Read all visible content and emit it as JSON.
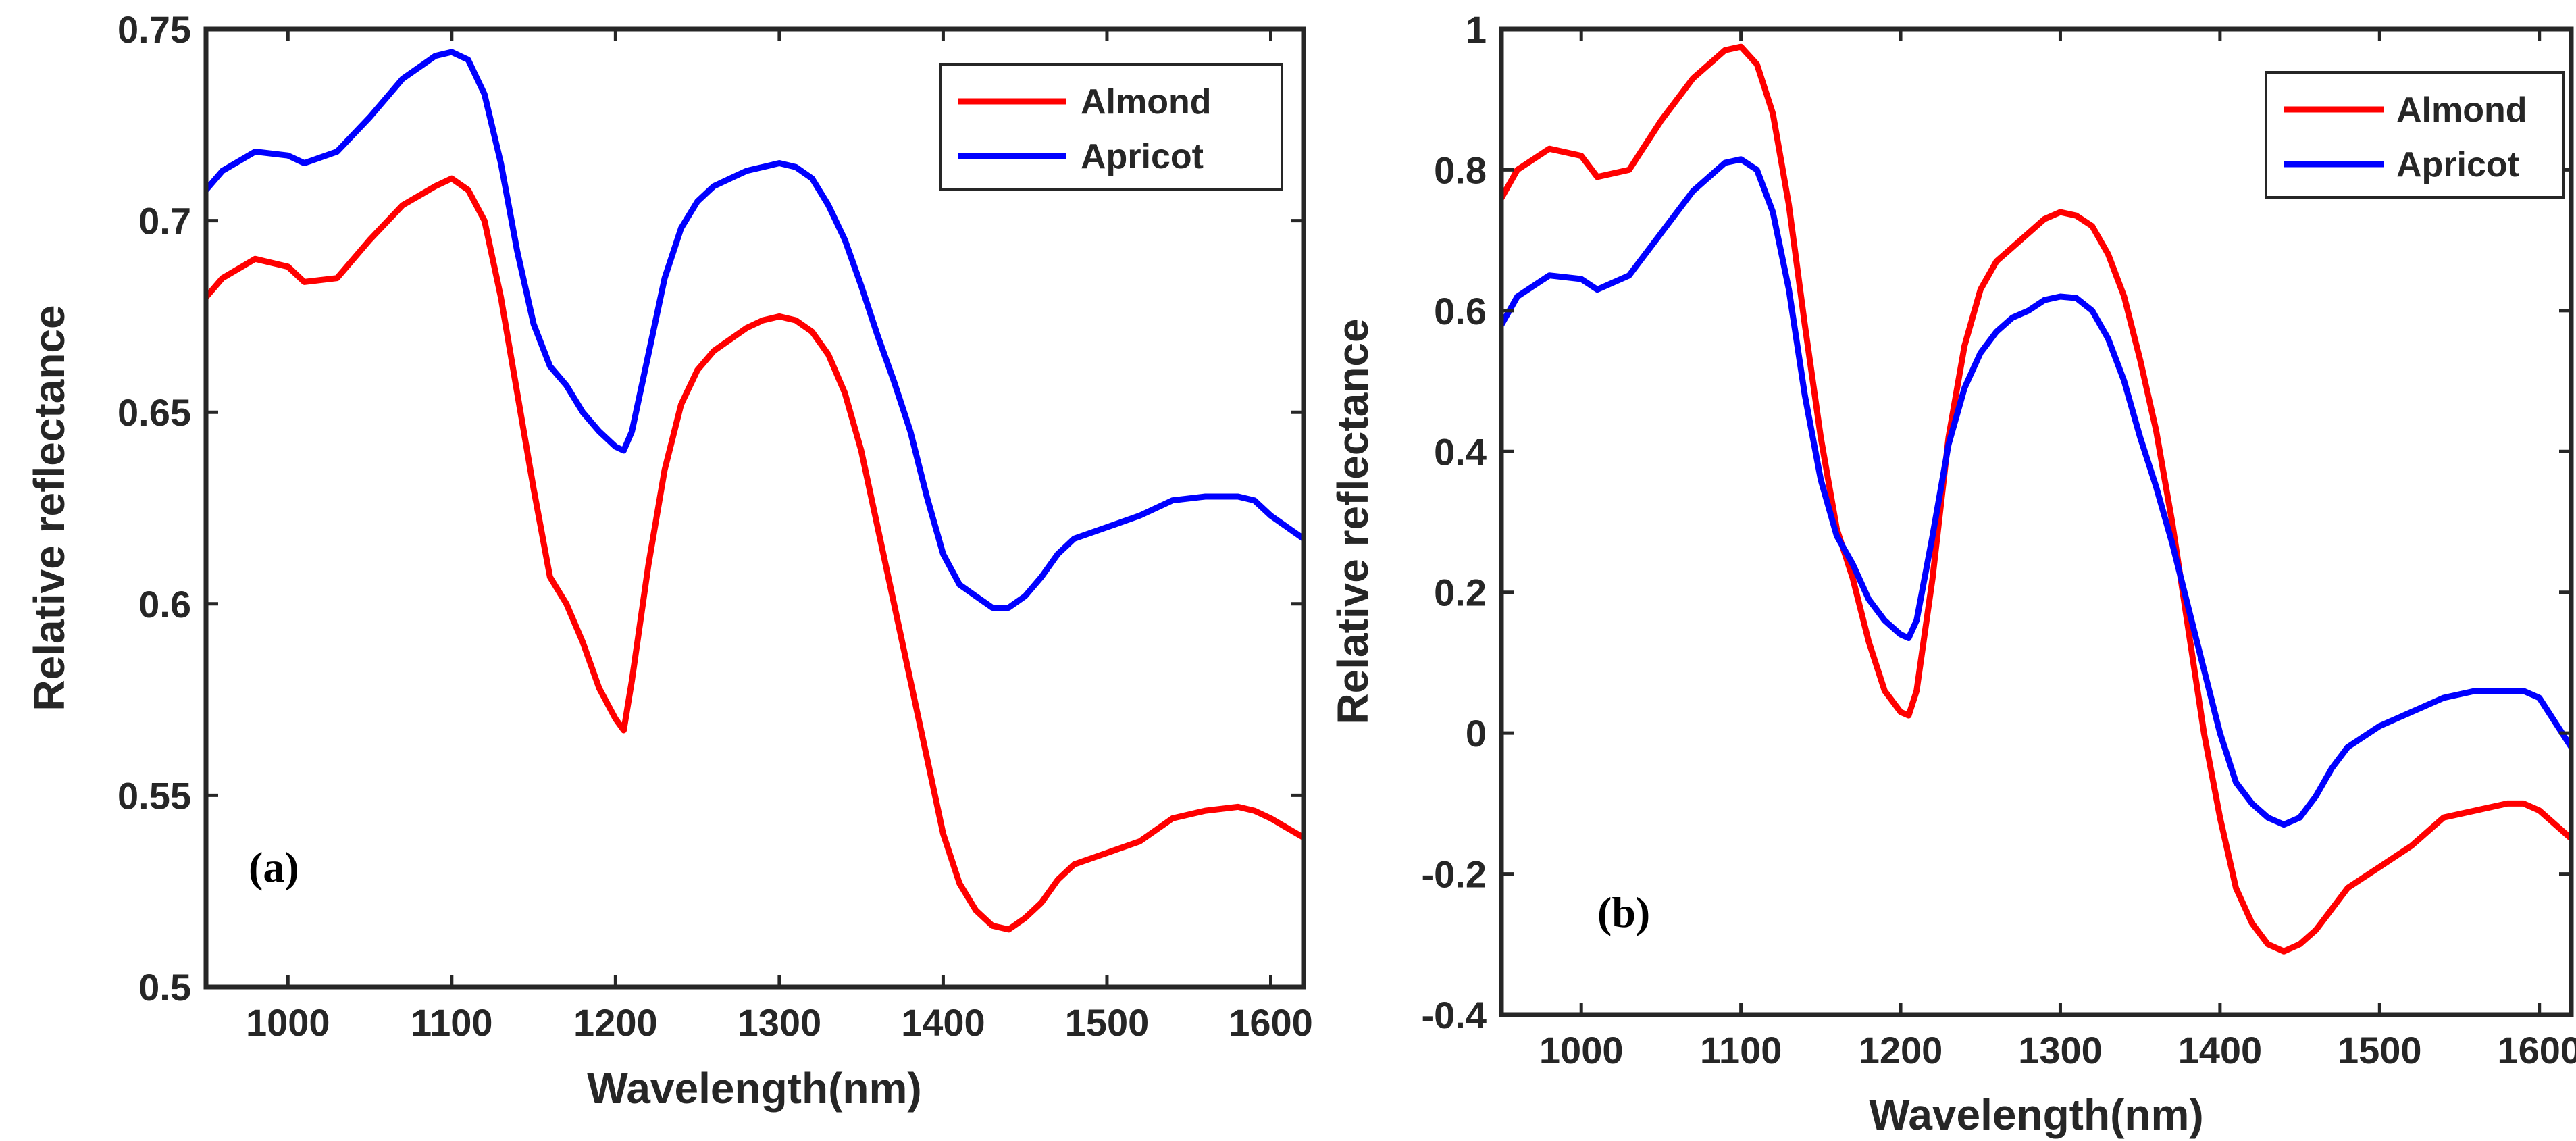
{
  "chart_data": [
    {
      "type": "line",
      "panel_label": "(a)",
      "xlabel": "Wavelength(nm)",
      "ylabel": "Relative reflectance",
      "xlim": [
        950,
        1620
      ],
      "ylim": [
        0.5,
        0.75
      ],
      "xticks": [
        1000,
        1100,
        1200,
        1300,
        1400,
        1500,
        1600
      ],
      "xtick_labels": [
        "1000",
        "1100",
        "1200",
        "1300",
        "1400",
        "1500",
        "1600"
      ],
      "yticks": [
        0.5,
        0.55,
        0.6,
        0.65,
        0.7,
        0.75
      ],
      "ytick_labels": [
        "0.5",
        "0.55",
        "0.6",
        "0.65",
        "0.7",
        "0.75"
      ],
      "legend_position": "top-right",
      "series": [
        {
          "name": "Almond",
          "color": "#ff0000",
          "x": [
            950,
            960,
            980,
            1000,
            1010,
            1030,
            1050,
            1070,
            1090,
            1100,
            1110,
            1120,
            1130,
            1140,
            1150,
            1160,
            1170,
            1180,
            1190,
            1200,
            1205,
            1210,
            1220,
            1230,
            1240,
            1250,
            1260,
            1270,
            1280,
            1290,
            1300,
            1310,
            1320,
            1330,
            1340,
            1350,
            1360,
            1370,
            1380,
            1390,
            1400,
            1410,
            1420,
            1430,
            1440,
            1450,
            1460,
            1470,
            1480,
            1500,
            1520,
            1540,
            1560,
            1580,
            1590,
            1600,
            1620
          ],
          "values": [
            0.68,
            0.685,
            0.69,
            0.688,
            0.684,
            0.685,
            0.695,
            0.704,
            0.709,
            0.711,
            0.708,
            0.7,
            0.68,
            0.655,
            0.63,
            0.607,
            0.6,
            0.59,
            0.578,
            0.57,
            0.567,
            0.58,
            0.61,
            0.635,
            0.652,
            0.661,
            0.666,
            0.669,
            0.672,
            0.674,
            0.675,
            0.674,
            0.671,
            0.665,
            0.655,
            0.64,
            0.62,
            0.6,
            0.58,
            0.56,
            0.54,
            0.527,
            0.52,
            0.516,
            0.515,
            0.518,
            0.522,
            0.528,
            0.532,
            0.535,
            0.538,
            0.544,
            0.546,
            0.547,
            0.546,
            0.544,
            0.539
          ]
        },
        {
          "name": "Apricot",
          "color": "#0000ff",
          "x": [
            950,
            960,
            980,
            1000,
            1010,
            1030,
            1050,
            1070,
            1090,
            1100,
            1110,
            1120,
            1130,
            1140,
            1150,
            1160,
            1170,
            1180,
            1190,
            1200,
            1205,
            1210,
            1220,
            1230,
            1240,
            1250,
            1260,
            1270,
            1280,
            1290,
            1300,
            1310,
            1320,
            1330,
            1340,
            1350,
            1360,
            1370,
            1380,
            1390,
            1400,
            1410,
            1420,
            1430,
            1440,
            1450,
            1460,
            1470,
            1480,
            1500,
            1520,
            1540,
            1560,
            1580,
            1590,
            1600,
            1620
          ],
          "values": [
            0.708,
            0.713,
            0.718,
            0.717,
            0.715,
            0.718,
            0.727,
            0.737,
            0.743,
            0.744,
            0.742,
            0.733,
            0.715,
            0.692,
            0.673,
            0.662,
            0.657,
            0.65,
            0.645,
            0.641,
            0.64,
            0.645,
            0.665,
            0.685,
            0.698,
            0.705,
            0.709,
            0.711,
            0.713,
            0.714,
            0.715,
            0.714,
            0.711,
            0.704,
            0.695,
            0.683,
            0.67,
            0.658,
            0.645,
            0.628,
            0.613,
            0.605,
            0.602,
            0.599,
            0.599,
            0.602,
            0.607,
            0.613,
            0.617,
            0.62,
            0.623,
            0.627,
            0.628,
            0.628,
            0.627,
            0.623,
            0.617
          ]
        }
      ]
    },
    {
      "type": "line",
      "panel_label": "(b)",
      "xlabel": "Wavelength(nm)",
      "ylabel": "Relative reflectance",
      "xlim": [
        950,
        1620
      ],
      "ylim": [
        -0.4,
        1.0
      ],
      "xticks": [
        1000,
        1100,
        1200,
        1300,
        1400,
        1500,
        1600
      ],
      "xtick_labels": [
        "1000",
        "1100",
        "1200",
        "1300",
        "1400",
        "1500",
        "1600"
      ],
      "yticks": [
        -0.4,
        -0.2,
        0,
        0.2,
        0.4,
        0.6,
        0.8,
        1
      ],
      "ytick_labels": [
        "-0.4",
        "-0.2",
        "0",
        "0.2",
        "0.4",
        "0.6",
        "0.8",
        "1"
      ],
      "legend_position": "top-right",
      "series": [
        {
          "name": "Almond",
          "color": "#ff0000",
          "x": [
            950,
            960,
            980,
            1000,
            1010,
            1030,
            1050,
            1070,
            1090,
            1100,
            1110,
            1120,
            1130,
            1140,
            1150,
            1160,
            1170,
            1180,
            1190,
            1200,
            1205,
            1210,
            1220,
            1230,
            1240,
            1250,
            1260,
            1270,
            1280,
            1290,
            1300,
            1310,
            1320,
            1330,
            1340,
            1350,
            1360,
            1370,
            1380,
            1390,
            1400,
            1410,
            1420,
            1430,
            1440,
            1450,
            1460,
            1470,
            1480,
            1500,
            1520,
            1540,
            1560,
            1580,
            1590,
            1600,
            1620
          ],
          "values": [
            0.76,
            0.8,
            0.83,
            0.82,
            0.79,
            0.8,
            0.87,
            0.93,
            0.97,
            0.975,
            0.95,
            0.88,
            0.75,
            0.58,
            0.42,
            0.29,
            0.22,
            0.13,
            0.06,
            0.03,
            0.025,
            0.06,
            0.22,
            0.42,
            0.55,
            0.63,
            0.67,
            0.69,
            0.71,
            0.73,
            0.74,
            0.735,
            0.72,
            0.68,
            0.62,
            0.53,
            0.43,
            0.3,
            0.15,
            0.0,
            -0.12,
            -0.22,
            -0.27,
            -0.3,
            -0.31,
            -0.3,
            -0.28,
            -0.25,
            -0.22,
            -0.19,
            -0.16,
            -0.12,
            -0.11,
            -0.1,
            -0.1,
            -0.11,
            -0.15
          ]
        },
        {
          "name": "Apricot",
          "color": "#0000ff",
          "x": [
            950,
            960,
            980,
            1000,
            1010,
            1030,
            1050,
            1070,
            1090,
            1100,
            1110,
            1120,
            1130,
            1140,
            1150,
            1160,
            1170,
            1180,
            1190,
            1200,
            1205,
            1210,
            1220,
            1230,
            1240,
            1250,
            1260,
            1270,
            1280,
            1290,
            1300,
            1310,
            1320,
            1330,
            1340,
            1350,
            1360,
            1370,
            1380,
            1390,
            1400,
            1410,
            1420,
            1430,
            1440,
            1450,
            1460,
            1470,
            1480,
            1500,
            1520,
            1540,
            1560,
            1580,
            1590,
            1600,
            1620
          ],
          "values": [
            0.58,
            0.62,
            0.65,
            0.645,
            0.63,
            0.65,
            0.71,
            0.77,
            0.81,
            0.815,
            0.8,
            0.74,
            0.63,
            0.48,
            0.36,
            0.28,
            0.24,
            0.19,
            0.16,
            0.14,
            0.135,
            0.16,
            0.28,
            0.41,
            0.49,
            0.54,
            0.57,
            0.59,
            0.6,
            0.615,
            0.62,
            0.618,
            0.6,
            0.56,
            0.5,
            0.42,
            0.35,
            0.27,
            0.18,
            0.09,
            0.0,
            -0.07,
            -0.1,
            -0.12,
            -0.13,
            -0.12,
            -0.09,
            -0.05,
            -0.02,
            0.01,
            0.03,
            0.05,
            0.06,
            0.06,
            0.06,
            0.05,
            -0.02
          ]
        }
      ]
    }
  ]
}
